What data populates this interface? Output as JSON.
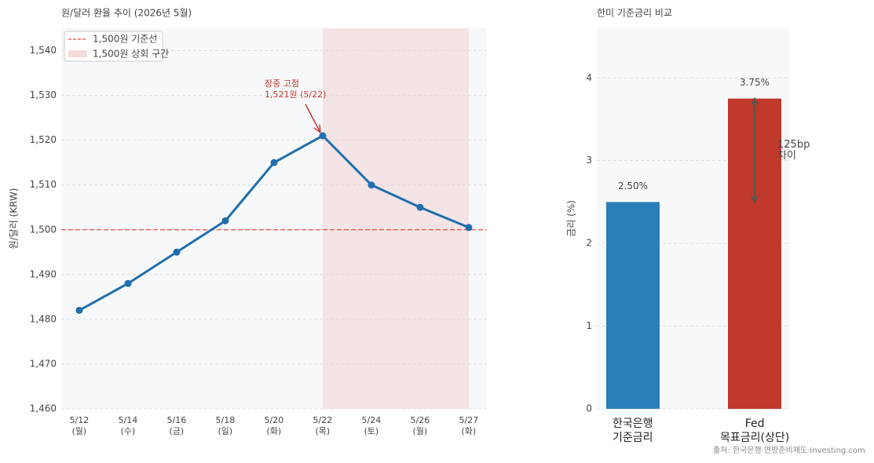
{
  "chart_data": [
    {
      "type": "line",
      "title": "원/달러 환율 추이 (2026년 5월)",
      "ylabel": "원/달러 (KRW)",
      "categories": [
        "5/12\n(월)",
        "5/14\n(수)",
        "5/16\n(금)",
        "5/18\n(일)",
        "5/20\n(화)",
        "5/22\n(목)",
        "5/24\n(토)",
        "5/26\n(월)",
        "5/27\n(화)"
      ],
      "series": [
        {
          "name": "원/달러",
          "color": "#1f6fad",
          "values": [
            1482,
            1488,
            1495,
            1502,
            1515,
            1521,
            1510,
            1505,
            1500.5
          ]
        }
      ],
      "ylim": [
        1460,
        1545
      ],
      "yticks": [
        {
          "value": 1460,
          "label": "1,460"
        },
        {
          "value": 1470,
          "label": "1,470"
        },
        {
          "value": 1480,
          "label": "1,480"
        },
        {
          "value": 1490,
          "label": "1,490"
        },
        {
          "value": 1500,
          "label": "1,500"
        },
        {
          "value": 1510,
          "label": "1,510"
        },
        {
          "value": 1520,
          "label": "1,520"
        },
        {
          "value": 1530,
          "label": "1,530"
        },
        {
          "value": 1540,
          "label": "1,540"
        }
      ],
      "grid": true,
      "reference_line": {
        "value": 1500,
        "label": "1,500원 기준선",
        "color": "#e74c3c"
      },
      "span": {
        "from": 5,
        "to": 8,
        "label": "1,500원 상회 구간",
        "color": "#f2dcdb"
      },
      "annotation": {
        "text": "장중 고점\n1,521원 (5/22)",
        "point": 5,
        "color": "#c0392b"
      },
      "legend": "upper left"
    },
    {
      "type": "bar",
      "title": "한미 기준금리 비교",
      "ylabel": "금리 (%)",
      "categories": [
        "한국은행\n기준금리",
        "Fed\n목표금리(상단)"
      ],
      "values": [
        2.5,
        3.75
      ],
      "value_labels": [
        "2.50%",
        "3.75%"
      ],
      "colors": [
        "#2a7fb8",
        "#c0392b"
      ],
      "ylim": [
        0,
        4.6
      ],
      "yticks": [
        0,
        1,
        2,
        3,
        4
      ],
      "grid": true,
      "annotation": {
        "text": "125bp\n차이"
      },
      "source": "출처: 한국은행·연방준비제도·Investing.com"
    }
  ]
}
